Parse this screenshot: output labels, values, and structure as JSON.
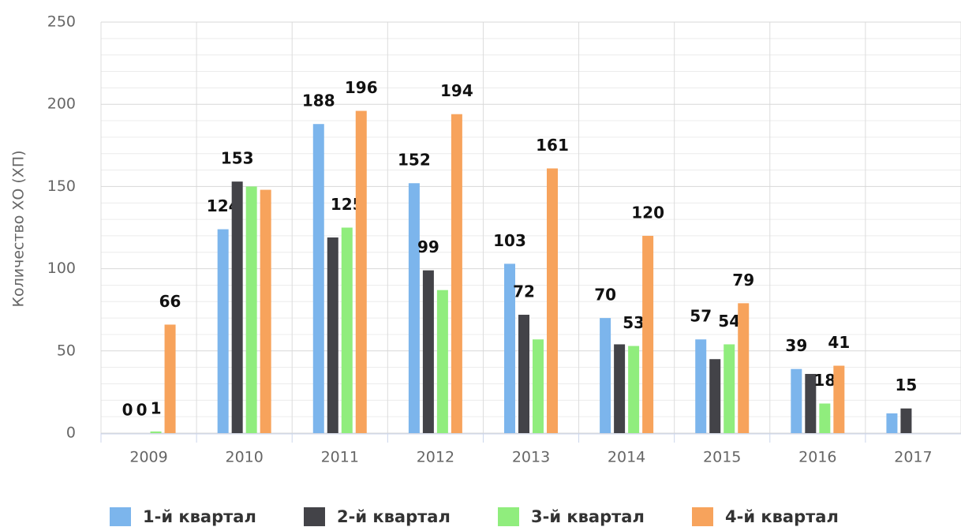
{
  "chart_data": {
    "type": "bar",
    "y_label": "Количество ХО (ХП)",
    "categories": [
      "2009",
      "2010",
      "2011",
      "2012",
      "2013",
      "2014",
      "2015",
      "2016",
      "2017"
    ],
    "series": [
      {
        "name": "1-й квартал",
        "color": "#7cb5ec",
        "values": [
          0,
          124,
          188,
          152,
          103,
          70,
          57,
          39,
          12
        ],
        "value_labels": [
          "0",
          "124",
          "188",
          "152",
          "103",
          "70",
          "57",
          "39",
          null
        ]
      },
      {
        "name": "2-й квартал",
        "color": "#434348",
        "values": [
          0,
          153,
          119,
          99,
          72,
          54,
          45,
          36,
          15
        ],
        "value_labels": [
          "0",
          "153",
          null,
          "99",
          "72",
          null,
          null,
          null,
          "15"
        ]
      },
      {
        "name": "3-й квартал",
        "color": "#90ed7d",
        "values": [
          1,
          150,
          125,
          87,
          57,
          53,
          54,
          18,
          null
        ],
        "value_labels": [
          "1",
          null,
          "125",
          null,
          null,
          "53",
          "54",
          "18",
          null
        ]
      },
      {
        "name": "4-й квартал",
        "color": "#f7a35c",
        "values": [
          66,
          148,
          196,
          194,
          161,
          120,
          79,
          41,
          null
        ],
        "value_labels": [
          "66",
          null,
          "196",
          "194",
          "161",
          "120",
          "79",
          "41",
          null
        ]
      }
    ],
    "ylim": [
      0,
      250
    ],
    "yticks": [
      0,
      50,
      100,
      150,
      200,
      250
    ],
    "grid": true,
    "legend": "bottom"
  }
}
